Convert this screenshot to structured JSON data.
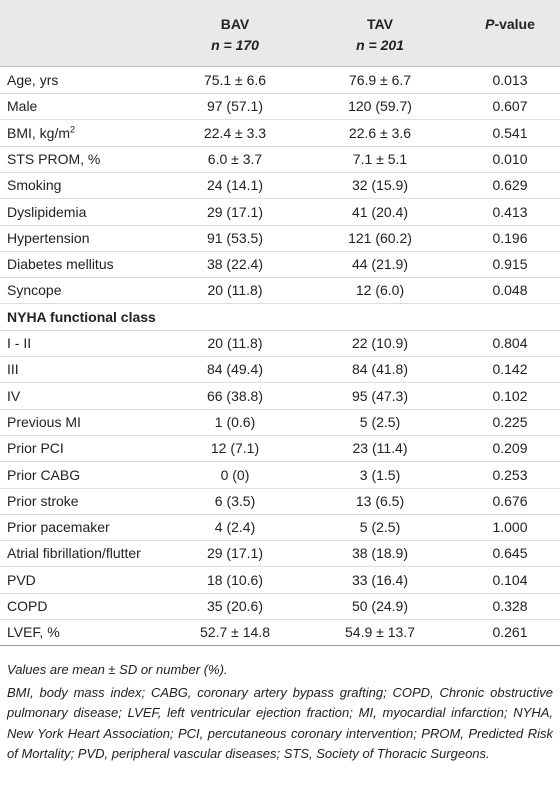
{
  "table": {
    "header": [
      {
        "title": "BAV",
        "n": "n = 170"
      },
      {
        "title": "TAV",
        "n": "n = 201"
      },
      {
        "title_em": "P",
        "title": "-value"
      }
    ],
    "rows": [
      {
        "label": "Age, yrs",
        "cells": [
          "75.1 ± 6.6",
          "76.9 ± 6.7",
          "0.013"
        ]
      },
      {
        "label": "Male",
        "cells": [
          "97 (57.1)",
          "120 (59.7)",
          "0.607"
        ]
      },
      {
        "label": "BMI, kg/m",
        "label_sup": "2",
        "cells": [
          "22.4 ± 3.3",
          "22.6 ± 3.6",
          "0.541"
        ]
      },
      {
        "label": "STS PROM, %",
        "cells": [
          "6.0 ± 3.7",
          "7.1 ± 5.1",
          "0.010"
        ]
      },
      {
        "label": "Smoking",
        "cells": [
          "24 (14.1)",
          "32 (15.9)",
          "0.629"
        ]
      },
      {
        "label": "Dyslipidemia",
        "cells": [
          "29 (17.1)",
          "41 (20.4)",
          "0.413"
        ]
      },
      {
        "label": "Hypertension",
        "cells": [
          "91 (53.5)",
          "121 (60.2)",
          "0.196"
        ]
      },
      {
        "label": "Diabetes mellitus",
        "cells": [
          "38 (22.4)",
          "44 (21.9)",
          "0.915"
        ]
      },
      {
        "label": "Syncope",
        "cells": [
          "20 (11.8)",
          "12 (6.0)",
          "0.048"
        ]
      },
      {
        "section": "NYHA functional class"
      },
      {
        "label": "I - II",
        "cells": [
          "20 (11.8)",
          "22 (10.9)",
          "0.804"
        ]
      },
      {
        "label": "III",
        "cells": [
          "84 (49.4)",
          "84 (41.8)",
          "0.142"
        ]
      },
      {
        "label": "IV",
        "cells": [
          "66 (38.8)",
          "95 (47.3)",
          "0.102"
        ]
      },
      {
        "label": "Previous MI",
        "cells": [
          "1 (0.6)",
          "5 (2.5)",
          "0.225"
        ]
      },
      {
        "label": "Prior PCI",
        "cells": [
          "12 (7.1)",
          "23 (11.4)",
          "0.209"
        ]
      },
      {
        "label": "Prior CABG",
        "cells": [
          "0 (0)",
          "3 (1.5)",
          "0.253"
        ]
      },
      {
        "label": "Prior stroke",
        "cells": [
          "6 (3.5)",
          "13 (6.5)",
          "0.676"
        ]
      },
      {
        "label": "Prior pacemaker",
        "cells": [
          "4 (2.4)",
          "5 (2.5)",
          "1.000"
        ]
      },
      {
        "label": "Atrial fibrillation/flutter",
        "cells": [
          "29 (17.1)",
          "38 (18.9)",
          "0.645"
        ]
      },
      {
        "label": "PVD",
        "cells": [
          "18 (10.6)",
          "33 (16.4)",
          "0.104"
        ]
      },
      {
        "label": "COPD",
        "cells": [
          "35 (20.6)",
          "50 (24.9)",
          "0.328"
        ]
      },
      {
        "label": "LVEF, %",
        "cells": [
          "52.7 ± 14.8",
          "54.9 ± 13.7",
          "0.261"
        ]
      }
    ]
  },
  "footnotes": [
    "Values are mean ± SD or number (%).",
    "BMI, body mass index; CABG, coronary artery bypass grafting; COPD, Chronic obstructive pulmonary disease; LVEF, left ventricular ejection fraction; MI, myocardial infarction; NYHA, New York Heart Association; PCI, percutaneous coronary intervention; PROM, Predicted Risk of Mortality; PVD, peripheral vascular diseases; STS, Society of Thoracic Surgeons."
  ]
}
